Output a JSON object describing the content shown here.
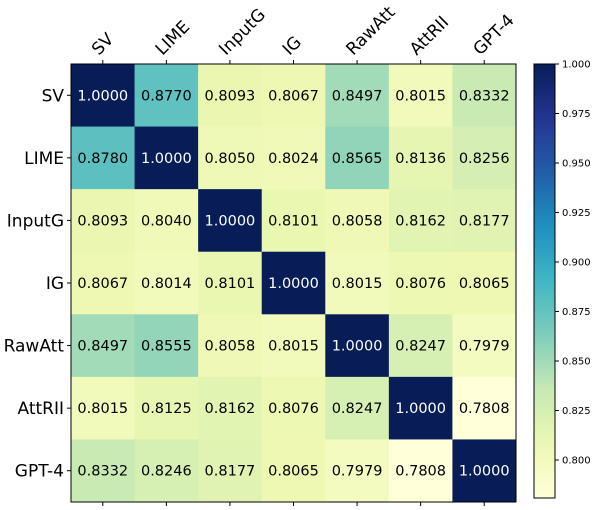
{
  "chart_data": {
    "type": "heatmap",
    "title": "",
    "xlabel": "",
    "ylabel": "",
    "x_categories": [
      "SV",
      "LIME",
      "InputG",
      "IG",
      "RawAtt",
      "AttRII",
      "GPT-4"
    ],
    "y_categories": [
      "SV",
      "LIME",
      "InputG",
      "IG",
      "RawAtt",
      "AttRII",
      "GPT-4"
    ],
    "values": [
      [
        1.0,
        0.877,
        0.8093,
        0.8067,
        0.8497,
        0.8015,
        0.8332
      ],
      [
        0.878,
        1.0,
        0.805,
        0.8024,
        0.8565,
        0.8136,
        0.8256
      ],
      [
        0.8093,
        0.804,
        1.0,
        0.8101,
        0.8058,
        0.8162,
        0.8177
      ],
      [
        0.8067,
        0.8014,
        0.8101,
        1.0,
        0.8015,
        0.8076,
        0.8065
      ],
      [
        0.8497,
        0.8555,
        0.8058,
        0.8015,
        1.0,
        0.8247,
        0.7979
      ],
      [
        0.8015,
        0.8125,
        0.8162,
        0.8076,
        0.8247,
        1.0,
        0.7808
      ],
      [
        0.8332,
        0.8246,
        0.8177,
        0.8065,
        0.7979,
        0.7808,
        1.0
      ]
    ],
    "value_format": "4 decimals",
    "x_axis_position": "top",
    "colormap": "YlGnBu",
    "colorbar": {
      "range": [
        0.7808,
        1.0
      ],
      "ticks": [
        0.8,
        0.825,
        0.85,
        0.875,
        0.9,
        0.925,
        0.95,
        0.975,
        1.0
      ],
      "tick_labels": [
        "0.800",
        "0.825",
        "0.850",
        "0.875",
        "0.900",
        "0.925",
        "0.950",
        "0.975",
        "1.000"
      ],
      "placement": "right"
    },
    "grid": false
  }
}
